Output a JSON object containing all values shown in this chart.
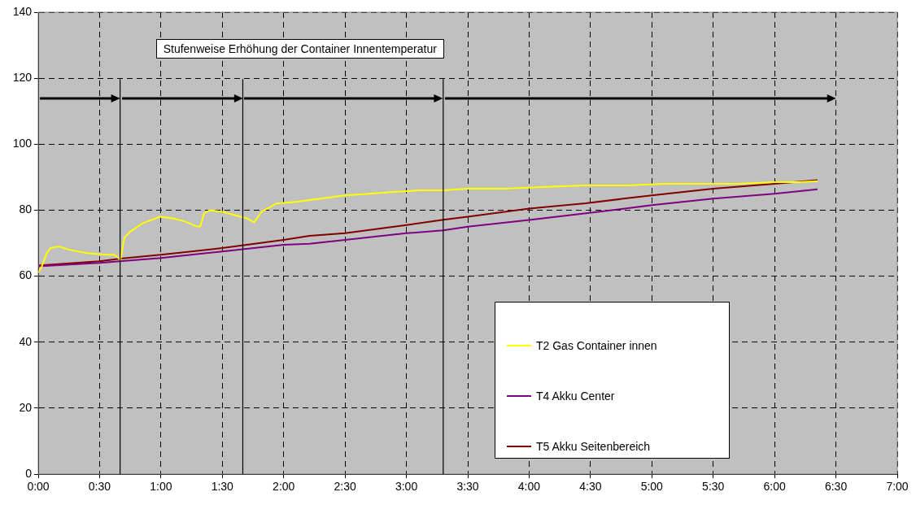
{
  "chart_data": {
    "type": "line",
    "annotations": [
      "Stufenweise Erhöhung der Container Innentemperatur"
    ],
    "xlim": [
      0,
      7
    ],
    "xticks": [
      {
        "value": 0,
        "label": "0:00"
      },
      {
        "value": 0.5,
        "label": "0:30"
      },
      {
        "value": 1,
        "label": "1:00"
      },
      {
        "value": 1.5,
        "label": "1:30"
      },
      {
        "value": 2,
        "label": "2:00"
      },
      {
        "value": 2.5,
        "label": "2:30"
      },
      {
        "value": 3,
        "label": "3:00"
      },
      {
        "value": 3.5,
        "label": "3:30"
      },
      {
        "value": 4,
        "label": "4:00"
      },
      {
        "value": 4.5,
        "label": "4:30"
      },
      {
        "value": 5,
        "label": "5:00"
      },
      {
        "value": 5.5,
        "label": "5:30"
      },
      {
        "value": 6,
        "label": "6:00"
      },
      {
        "value": 6.5,
        "label": "6:30"
      },
      {
        "value": 7,
        "label": "7:00"
      }
    ],
    "ylim": [
      0,
      140
    ],
    "yticks": [
      0,
      20,
      40,
      60,
      80,
      100,
      120,
      140
    ],
    "grid": true,
    "legend": "bottom right",
    "marker": "none",
    "line_style": "solid",
    "ref_lines": [
      {
        "axis": "x",
        "value": 0.667,
        "color": "#000000"
      },
      {
        "axis": "x",
        "value": 1.667,
        "color": "#000000"
      },
      {
        "axis": "x",
        "value": 3.3,
        "color": "#000000"
      }
    ],
    "series": [
      {
        "name": "T2 Gas Container innen",
        "color": "#ffff00",
        "x": [
          0,
          0.03,
          0.07,
          0.1,
          0.17,
          0.25,
          0.4,
          0.55,
          0.62,
          0.67,
          0.7,
          0.75,
          0.85,
          0.99,
          1.1,
          1.2,
          1.28,
          1.32,
          1.35,
          1.4,
          1.5,
          1.6,
          1.7,
          1.76,
          1.82,
          1.94,
          2.1,
          2.3,
          2.5,
          2.7,
          2.9,
          3.1,
          3.3,
          3.5,
          3.8,
          4.1,
          4.46,
          4.8,
          5.1,
          5.4,
          5.7,
          6.0,
          6.2,
          6.35
        ],
        "values": [
          61,
          63,
          67,
          68.5,
          69,
          68,
          67,
          66.5,
          66.5,
          65,
          71.5,
          73.5,
          76,
          78,
          77.5,
          76.5,
          75.2,
          75,
          79,
          80,
          79.5,
          78.5,
          77.5,
          76.3,
          79.5,
          82,
          82.5,
          83.5,
          84.5,
          85,
          85.5,
          86,
          86,
          86.5,
          86.5,
          87,
          87.5,
          87.5,
          88,
          88,
          88,
          88.5,
          88.5,
          88.8
        ]
      },
      {
        "name": "T4 Akku Center",
        "color": "#800080",
        "x": [
          0,
          0.5,
          1,
          1.5,
          2,
          2.21,
          2.5,
          3,
          3.3,
          3.5,
          4,
          4.59,
          5,
          5.5,
          6,
          6.35
        ],
        "values": [
          63,
          64,
          65.5,
          67.5,
          69.5,
          69.8,
          71,
          73,
          73.9,
          75,
          77,
          79.6,
          81.5,
          83.5,
          85,
          86.3
        ]
      },
      {
        "name": "T5 Akku Seitenbereich",
        "color": "#800000",
        "x": [
          0,
          0.5,
          0.67,
          1,
          1.5,
          2,
          2.21,
          2.5,
          3,
          3.3,
          3.5,
          4,
          4.46,
          5,
          5.5,
          6,
          6.35
        ],
        "values": [
          63.2,
          64.5,
          65.3,
          66.5,
          68.5,
          71,
          72.2,
          73,
          75.5,
          77.1,
          78,
          80.5,
          82.1,
          84.5,
          86.5,
          88,
          89.1
        ]
      }
    ]
  }
}
